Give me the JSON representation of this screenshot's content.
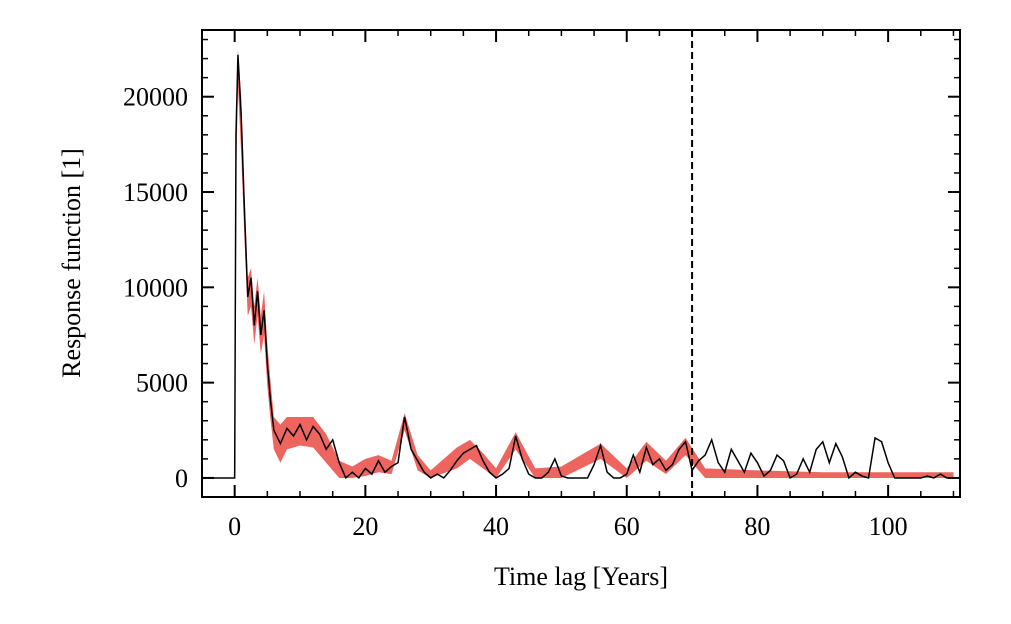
{
  "chart_data": {
    "type": "line",
    "xlabel": "Time lag [Years]",
    "ylabel": "Response function [1]",
    "xlim": [
      -5,
      111
    ],
    "ylim": [
      -1000,
      23500
    ],
    "xticks": [
      0,
      20,
      40,
      60,
      80,
      100
    ],
    "yticks": [
      0,
      5000,
      10000,
      15000,
      20000
    ],
    "xminorticks": [
      -5,
      5,
      10,
      15,
      25,
      30,
      35,
      45,
      50,
      55,
      65,
      70,
      75,
      85,
      90,
      95,
      105,
      110
    ],
    "yminorticks": [
      -1000,
      1000,
      2000,
      3000,
      4000,
      6000,
      7000,
      8000,
      9000,
      11000,
      12000,
      13000,
      14000,
      16000,
      17000,
      18000,
      19000,
      21000,
      22000,
      23000
    ],
    "vline": 70,
    "band": {
      "color": "#e8302a",
      "x": [
        0,
        0.2,
        0.5,
        1,
        1.5,
        2,
        2.5,
        3,
        3.5,
        4,
        4.5,
        5,
        5.5,
        6,
        7,
        8,
        10,
        12,
        14,
        16,
        18,
        20,
        22,
        24,
        26,
        28,
        30,
        34,
        36,
        38,
        40,
        43,
        46,
        50,
        56,
        60,
        63,
        66,
        69,
        72,
        80,
        90,
        100,
        110
      ],
      "lower": [
        0,
        15000,
        20500,
        17000,
        12500,
        8500,
        9000,
        7000,
        8500,
        6500,
        7500,
        4800,
        3000,
        1500,
        800,
        1500,
        1700,
        1600,
        800,
        0,
        0,
        100,
        300,
        200,
        2500,
        400,
        0,
        500,
        1000,
        500,
        0,
        1500,
        0,
        0,
        1000,
        0,
        900,
        200,
        1200,
        0,
        0,
        0,
        0,
        0
      ],
      "upper": [
        0,
        19000,
        22500,
        20000,
        15000,
        10500,
        11000,
        9000,
        10500,
        8500,
        9800,
        7000,
        5000,
        3200,
        2800,
        3200,
        3200,
        3200,
        2300,
        900,
        600,
        1000,
        1200,
        900,
        3400,
        1200,
        400,
        1600,
        2000,
        1300,
        500,
        2400,
        500,
        600,
        1800,
        500,
        1900,
        900,
        2100,
        500,
        400,
        300,
        300,
        300
      ]
    },
    "series": [
      {
        "color": "#000000",
        "x": [
          -5,
          0,
          0.2,
          0.5,
          1,
          1.5,
          2,
          2.5,
          3,
          3.5,
          4,
          4.5,
          5,
          5.5,
          6,
          7,
          8,
          9,
          10,
          11,
          12,
          13,
          14,
          15,
          16,
          17,
          18,
          19,
          20,
          21,
          22,
          23,
          24,
          25,
          26,
          27,
          28,
          29,
          30,
          31,
          32,
          33,
          34,
          35,
          36,
          37,
          38,
          39,
          40,
          41,
          42,
          43,
          44,
          45,
          46,
          47,
          48,
          49,
          50,
          51,
          52,
          53,
          54,
          55,
          56,
          57,
          58,
          59,
          60,
          61,
          62,
          63,
          64,
          65,
          66,
          67,
          68,
          69,
          70,
          71,
          72,
          73,
          74,
          75,
          76,
          77,
          78,
          79,
          80,
          81,
          82,
          83,
          84,
          85,
          86,
          87,
          88,
          89,
          90,
          91,
          92,
          93,
          94,
          95,
          96,
          97,
          98,
          99,
          100,
          101,
          102,
          103,
          104,
          105,
          106,
          107,
          108,
          109,
          110
        ],
        "values": [
          0,
          0,
          18000,
          22200,
          19000,
          14000,
          9500,
          10500,
          8000,
          9800,
          7500,
          8800,
          6000,
          4000,
          2500,
          1800,
          2600,
          2200,
          2800,
          2000,
          2700,
          2300,
          1500,
          2000,
          800,
          0,
          300,
          0,
          500,
          200,
          900,
          300,
          600,
          800,
          3200,
          1500,
          900,
          300,
          0,
          200,
          0,
          400,
          900,
          1300,
          1500,
          1700,
          900,
          300,
          0,
          200,
          500,
          2200,
          1000,
          200,
          0,
          0,
          300,
          1000,
          100,
          0,
          0,
          0,
          0,
          700,
          1700,
          300,
          0,
          0,
          200,
          1200,
          300,
          1600,
          700,
          1000,
          400,
          700,
          1500,
          1900,
          400,
          900,
          1200,
          2000,
          800,
          300,
          1500,
          900,
          300,
          1300,
          800,
          100,
          400,
          1200,
          900,
          0,
          200,
          1000,
          300,
          1500,
          1900,
          800,
          1800,
          1100,
          0,
          300,
          100,
          0,
          2100,
          1900,
          800,
          0,
          0,
          0,
          0,
          0,
          100,
          0,
          200,
          0,
          0
        ]
      }
    ]
  }
}
